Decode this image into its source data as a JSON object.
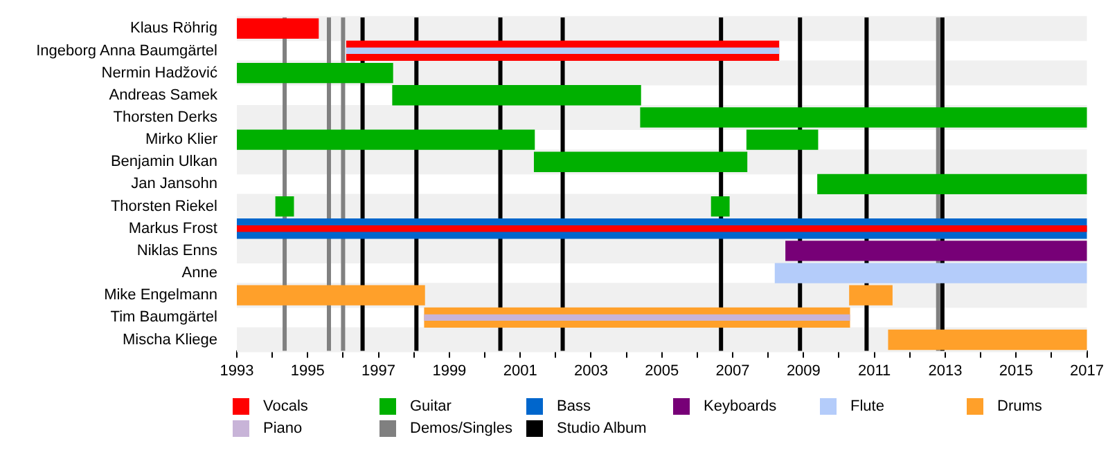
{
  "chart_data": {
    "type": "bar",
    "orientation": "horizontal",
    "legend": "bottom",
    "grid": false,
    "categories": [
      "Klaus Röhrig",
      "Ingeborg Anna Baumgärtel",
      "Nermin Hadžović",
      "Andreas Samek",
      "Thorsten Derks",
      "Mirko Klier",
      "Benjamin Ulkan",
      "Jan Jansohn",
      "Thorsten Riekel",
      "Markus Frost",
      "Niklas Enns",
      "Anne",
      "Mike Engelmann",
      "Tim Baumgärtel",
      "Mischa Kliege"
    ],
    "xlim": [
      1993,
      2017
    ],
    "xticks": [
      1993,
      {
        "value": 1994,
        "label": null
      },
      1995,
      {
        "value": 1996,
        "label": null
      },
      1997,
      {
        "value": 1998,
        "label": null
      },
      1999,
      {
        "value": 2000,
        "label": null
      },
      2001,
      {
        "value": 2002,
        "label": null
      },
      2003,
      {
        "value": 2004,
        "label": null
      },
      2005,
      {
        "value": 2006,
        "label": null
      },
      2007,
      {
        "value": 2008,
        "label": null
      },
      2009,
      {
        "value": 2010,
        "label": null
      },
      2011,
      {
        "value": 2012,
        "label": null
      },
      2013,
      {
        "value": 2014,
        "label": null
      },
      2015,
      {
        "value": 2016,
        "label": null
      },
      2017
    ],
    "series": [
      {
        "name": "Vocals",
        "color": "#ff0000",
        "base": [
          1993,
          1996.1,
          null,
          null,
          null,
          null,
          null,
          null,
          null,
          null,
          null,
          null,
          null,
          null,
          null
        ],
        "values": [
          2.3,
          12.2,
          null,
          null,
          null,
          null,
          null,
          null,
          null,
          null,
          null,
          null,
          null,
          null,
          null
        ]
      },
      {
        "name": "Guitar",
        "color": "#00b000",
        "base": [
          null,
          null,
          1993,
          1997.4,
          2004.4,
          1993,
          2001.4,
          2009.4,
          1994.1,
          null,
          null,
          null,
          null,
          null,
          null
        ],
        "values": [
          null,
          null,
          4.4,
          7.0,
          12.6,
          8.4,
          6.0,
          7.6,
          0.5,
          null,
          null,
          null,
          null,
          null,
          null
        ]
      },
      {
        "color": "#00b000",
        "base": [
          null,
          null,
          null,
          null,
          null,
          2007.4,
          null,
          null,
          2006.4,
          null,
          null,
          null,
          null,
          null,
          null
        ],
        "values": [
          null,
          null,
          null,
          null,
          null,
          2.0,
          null,
          null,
          0.5,
          null,
          null,
          null,
          null,
          null,
          null
        ]
      },
      {
        "name": "Bass",
        "color": "#0066cc",
        "base": [
          null,
          null,
          null,
          null,
          null,
          null,
          null,
          null,
          null,
          1993,
          null,
          null,
          null,
          null,
          null
        ],
        "values": [
          null,
          null,
          null,
          null,
          null,
          null,
          null,
          null,
          null,
          24,
          null,
          null,
          null,
          null,
          null
        ]
      },
      {
        "name": "Keyboards",
        "color": "#770077",
        "base": [
          null,
          null,
          null,
          null,
          null,
          null,
          null,
          null,
          null,
          null,
          2008.5,
          null,
          null,
          null,
          null
        ],
        "values": [
          null,
          null,
          null,
          null,
          null,
          null,
          null,
          null,
          null,
          null,
          8.5,
          null,
          null,
          null,
          null
        ]
      },
      {
        "name": "Flute",
        "color": "#b4ccfa",
        "base": [
          null,
          1996.1,
          null,
          null,
          null,
          null,
          null,
          null,
          null,
          null,
          null,
          2008.2,
          null,
          null,
          null
        ],
        "values": [
          null,
          12.2,
          null,
          null,
          null,
          null,
          null,
          null,
          null,
          null,
          null,
          8.8,
          null,
          null,
          null
        ]
      },
      {
        "name": "Drums",
        "color": "#ffa02a",
        "base": [
          null,
          null,
          null,
          null,
          null,
          null,
          null,
          null,
          null,
          null,
          null,
          null,
          1993,
          1998.3,
          2011.4
        ],
        "values": [
          null,
          null,
          null,
          null,
          null,
          null,
          null,
          null,
          null,
          null,
          null,
          null,
          5.3,
          12.0,
          5.6
        ]
      },
      {
        "color": "#ffa02a",
        "base": [
          null,
          null,
          null,
          null,
          null,
          null,
          null,
          null,
          null,
          null,
          null,
          null,
          2010.3,
          null,
          null
        ],
        "values": [
          null,
          null,
          null,
          null,
          null,
          null,
          null,
          null,
          null,
          null,
          null,
          null,
          1.2,
          null,
          null
        ]
      },
      {
        "name": "Piano",
        "color": "#c8b4d8",
        "base": [
          null,
          null,
          null,
          null,
          null,
          null,
          null,
          null,
          null,
          null,
          null,
          null,
          null,
          1998.3,
          null
        ],
        "values": [
          null,
          null,
          null,
          null,
          null,
          null,
          null,
          null,
          null,
          null,
          null,
          null,
          null,
          12.0,
          null
        ]
      },
      {
        "color": "#ff0000",
        "base": [
          null,
          null,
          null,
          null,
          null,
          null,
          null,
          null,
          null,
          1993,
          null,
          null,
          null,
          null,
          null
        ],
        "values": [
          null,
          null,
          null,
          null,
          null,
          null,
          null,
          null,
          null,
          24,
          null,
          null,
          null,
          null,
          null
        ]
      }
    ],
    "ref_lines": [
      {
        "axis": "x",
        "value": 1994.35,
        "label": "Demos/Singles",
        "color": "#808080"
      },
      {
        "axis": "x",
        "value": 1995.6,
        "color": "#808080"
      },
      {
        "axis": "x",
        "value": 1996.0,
        "color": "#808080"
      },
      {
        "axis": "x",
        "value": 2012.8,
        "color": "#808080"
      },
      {
        "axis": "x",
        "value": 1996.55,
        "label": "Studio Album",
        "color": "#000000"
      },
      {
        "axis": "x",
        "value": 1998.07,
        "color": "#000000"
      },
      {
        "axis": "x",
        "value": 2000.44,
        "color": "#000000"
      },
      {
        "axis": "x",
        "value": 2002.2,
        "color": "#000000"
      },
      {
        "axis": "x",
        "value": 2006.67,
        "color": "#000000"
      },
      {
        "axis": "x",
        "value": 2008.9,
        "color": "#000000"
      },
      {
        "axis": "x",
        "value": 2010.78,
        "color": "#000000"
      },
      {
        "axis": "x",
        "value": 2012.92,
        "color": "#000000"
      }
    ]
  }
}
